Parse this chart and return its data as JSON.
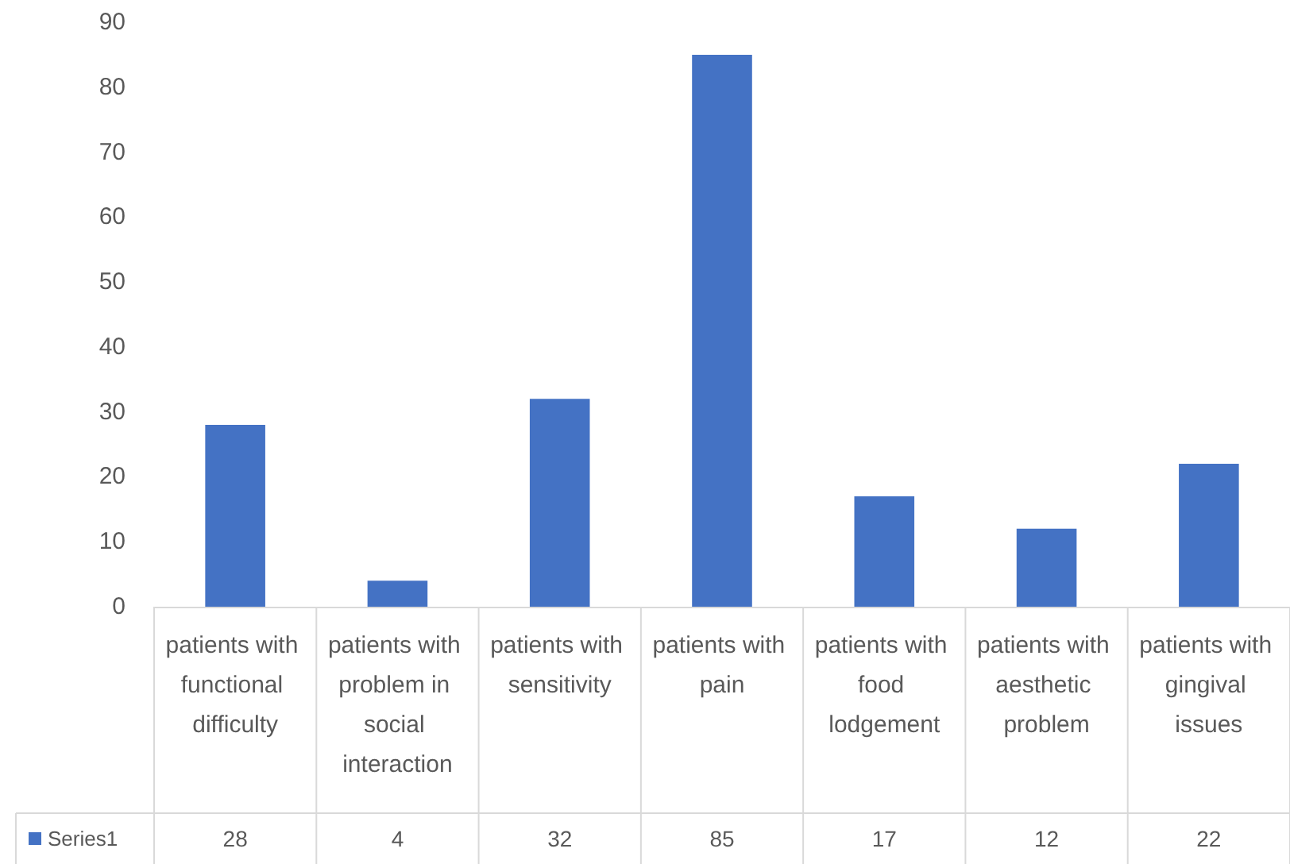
{
  "chart_data": {
    "type": "bar",
    "categories": [
      "patients with functional difficulty",
      "patients with problem in social interaction",
      "patients with sensitivity",
      "patients with pain",
      "patients with food lodgement",
      "patients with aesthetic problem",
      "patients with gingival issues"
    ],
    "series": [
      {
        "name": "Series1",
        "color": "#4472c4",
        "values": [
          28,
          4,
          32,
          85,
          17,
          12,
          22
        ]
      }
    ],
    "ylim": [
      0,
      90
    ],
    "yticks": [
      0,
      10,
      20,
      30,
      40,
      50,
      60,
      70,
      80,
      90
    ],
    "grid": false,
    "legend": "bottom left",
    "data_labels": true
  }
}
